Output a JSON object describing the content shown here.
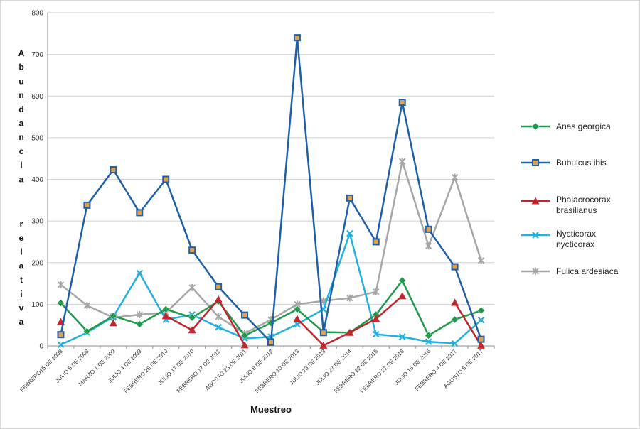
{
  "chart_data": {
    "type": "line",
    "title": "",
    "xlabel": "Muestreo",
    "ylabel": "Abundancia relativa",
    "ylim": [
      0,
      800
    ],
    "yticks": [
      0,
      100,
      200,
      300,
      400,
      500,
      600,
      700,
      800
    ],
    "grid": true,
    "legend_position": "right",
    "categories": [
      "FEBRERO15 DE 2008",
      "JULIO 5 DE 2008",
      "MARZO 1 DE 2009",
      "JULIO 4 DE 2009",
      "FEBRERO 28 DE 2010",
      "JULIO 17 DE 2010",
      "FEBRERO 17 DE 2011",
      "AGOSTO 23 DE 2011",
      "JULIO 8 DE 2012",
      "FEBRERO 10 DE 2013",
      "JULIO 13 DE 2013",
      "JULIO 27 DE 2014",
      "FEBRERO 22 DE 2015",
      "FEBRERO 21 DE 2016",
      "JULIO 16 DE 2016",
      "FEBRERO 4 DE 2017",
      "AGOSTO 6 DE 2017"
    ],
    "series": [
      {
        "name": "Anas georgica",
        "color": "#1f9a4b",
        "marker": "diamond",
        "values": [
          103,
          35,
          72,
          52,
          88,
          68,
          107,
          25,
          55,
          88,
          33,
          32,
          75,
          157,
          25,
          63,
          85
        ]
      },
      {
        "name": "Bubulcus ibis",
        "color": "#1f5fa8",
        "marker": "square",
        "values": [
          27,
          338,
          423,
          320,
          400,
          230,
          142,
          74,
          9,
          740,
          32,
          355,
          250,
          585,
          280,
          190,
          16
        ]
      },
      {
        "name": "Phalacrocorax brasilianus",
        "color": "#c0262d",
        "marker": "triangle",
        "values": [
          58,
          null,
          55,
          null,
          72,
          38,
          112,
          2,
          null,
          65,
          1,
          32,
          65,
          120,
          null,
          104,
          1
        ]
      },
      {
        "name": "Nycticorax nycticorax",
        "color": "#22b0e0",
        "marker": "x",
        "values": [
          3,
          32,
          70,
          175,
          63,
          75,
          45,
          18,
          22,
          52,
          88,
          270,
          28,
          22,
          10,
          6,
          62
        ]
      },
      {
        "name": "Fulica ardesiaca",
        "color": "#a6a6a6",
        "marker": "star",
        "values": [
          147,
          97,
          68,
          75,
          80,
          140,
          70,
          30,
          63,
          100,
          108,
          115,
          130,
          443,
          240,
          405,
          205
        ]
      }
    ]
  }
}
